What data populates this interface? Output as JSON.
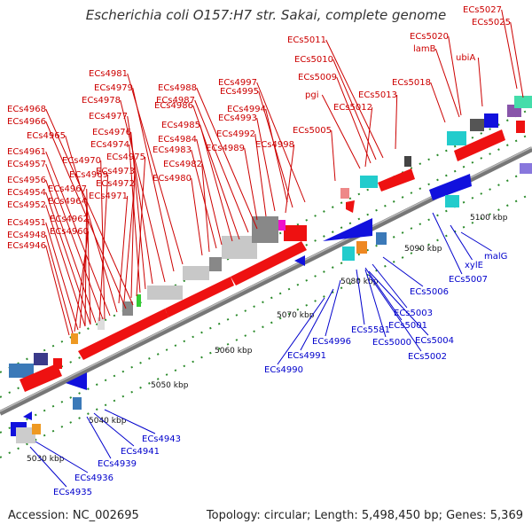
{
  "title": "Escherichia coli O157:H7 str. Sakai, complete genome",
  "accession": "Accession: NC_002695",
  "info": "Topology: circular; Length: 5,498,450 bp; Genes: 5,369",
  "colors": {
    "forward": "#ee1111",
    "reverse": "#1111dd",
    "rna_cyan": "#22cccc",
    "gray": "#888888",
    "label_top": "#cc0000",
    "label_bottom": "#0000cc"
  },
  "scale": {
    "unit": "kbp",
    "ticks": [
      "5030 kbp",
      "5040 kbp",
      "5050 kbp",
      "5060 kbp",
      "5070 kbp",
      "5080 kbp",
      "5090 kbp",
      "5100 kbp"
    ]
  },
  "top_labels": [
    "ECs5027",
    "ECs5025",
    "ECs5020",
    "lamB",
    "ubiA",
    "ECs5011",
    "ECs5018",
    "ECs5010",
    "ECs5009",
    "ECs5013",
    "pgi",
    "ECs5012",
    "ECs5005",
    "ECs4981",
    "ECs4997",
    "ECs4979",
    "ECs4988",
    "ECs4995",
    "ECs4978",
    "ECs4987",
    "ECs4994",
    "ECs4986",
    "ECs4993",
    "ECs4968",
    "ECs4977",
    "ECs4966",
    "ECs4985",
    "ECs4992",
    "ECs4976",
    "ECs4984",
    "ECs4998",
    "ECs4965",
    "ECs4974",
    "ECs4983",
    "ECs4989",
    "ECs4975",
    "ECs4961",
    "ECs4970",
    "ECs4982",
    "ECs4957",
    "ECs4973",
    "ECs4969",
    "ECs4980",
    "ECs4956",
    "ECs4972",
    "ECs4967",
    "ECs4954",
    "ECs4971",
    "ECs4964",
    "ECs4952",
    "ECs4962",
    "ECs4951",
    "ECs4960",
    "ECs4948",
    "ECs4946"
  ],
  "bottom_labels": [
    "malG",
    "xylE",
    "ECs5007",
    "ECs5006",
    "ECs5003",
    "ECs5001",
    "ECs5581",
    "ECs5004",
    "ECs4996",
    "ECs5000",
    "ECs5002",
    "ECs4991",
    "ECs4990",
    "ECs4943",
    "ECs4941",
    "ECs4939",
    "ECs4936",
    "ECs4935"
  ]
}
